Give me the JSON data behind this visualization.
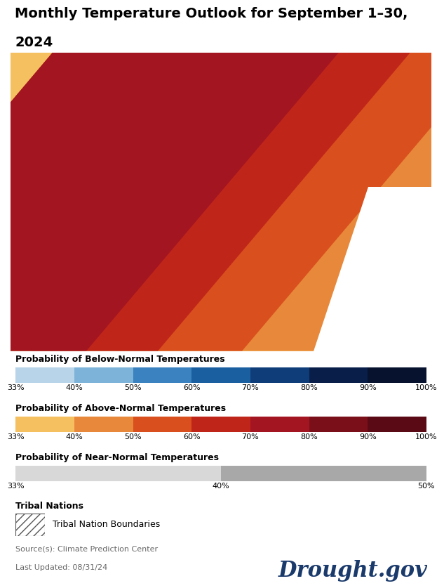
{
  "title_line1": "Monthly Temperature Outlook for September 1–30,",
  "title_line2": "2024",
  "title_fontsize": 14,
  "title_fontweight": "bold",
  "bg_color": "#ffffff",
  "below_normal_colors": [
    "#b8d4e8",
    "#7db3d8",
    "#3a82c0",
    "#1a5fa0",
    "#0f3d7a",
    "#091f4a",
    "#06122e"
  ],
  "below_normal_labels": [
    "33%",
    "40%",
    "50%",
    "60%",
    "70%",
    "80%",
    "90%",
    "100%"
  ],
  "below_normal_title": "Probability of Below-Normal Temperatures",
  "above_normal_colors": [
    "#f5c060",
    "#e8883a",
    "#d94f1e",
    "#c0251a",
    "#a31520",
    "#7a0f1a",
    "#5a0a14"
  ],
  "above_normal_labels": [
    "33%",
    "40%",
    "50%",
    "60%",
    "70%",
    "80%",
    "90%",
    "100%"
  ],
  "above_normal_title": "Probability of Above-Normal Temperatures",
  "near_normal_colors": [
    "#d8d8d8",
    "#a8a8a8"
  ],
  "near_normal_labels": [
    "33%",
    "40%",
    "50%"
  ],
  "near_normal_title": "Probability of Near-Normal Temperatures",
  "tribal_title": "Tribal Nations",
  "tribal_label": "Tribal Nation Boundaries",
  "source_text": "Source(s): Climate Prediction Center",
  "updated_text": "Last Updated: 08/31/24",
  "drought_gov_text": "Drought.gov",
  "drought_gov_color": "#1a3a6b",
  "map_band_colors": [
    "#c0251a",
    "#c0251a",
    "#d94f1e",
    "#d94f1e",
    "#e8883a",
    "#e8883a",
    "#f5c060",
    "#f5c060"
  ],
  "map_bg_color": "#f5c060"
}
